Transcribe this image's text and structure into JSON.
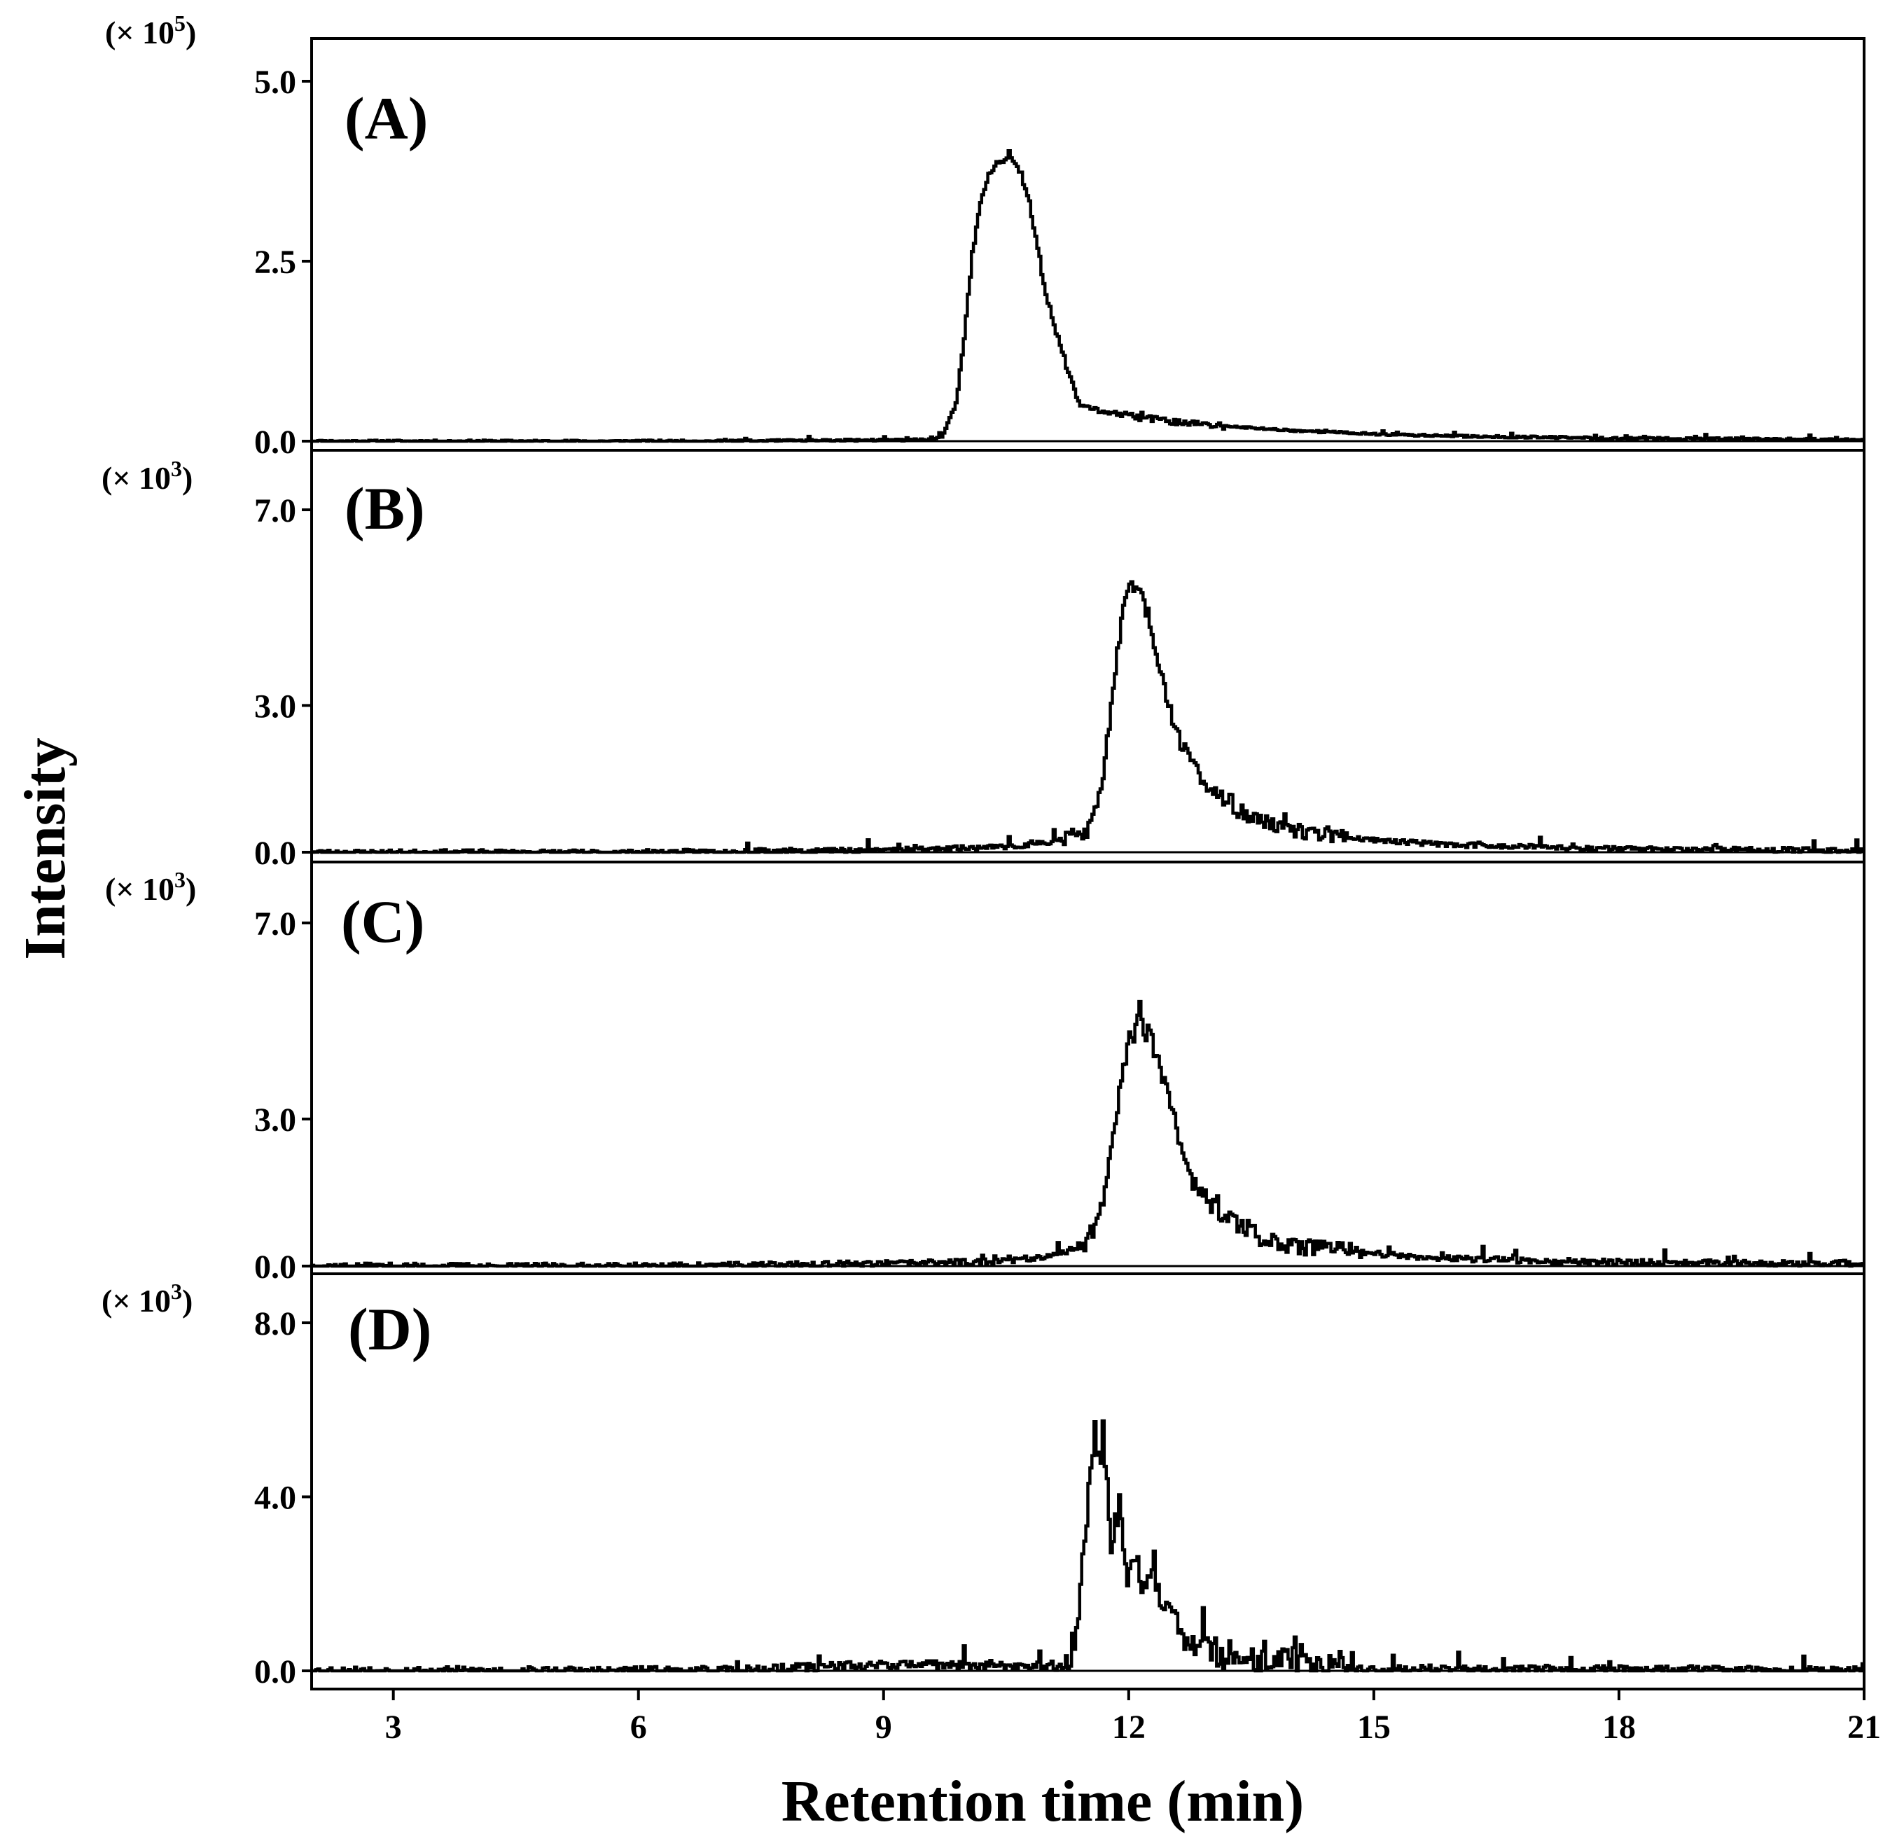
{
  "chart_data": {
    "type": "line",
    "figure_type": "stacked chromatograms",
    "xlabel": "Retention time (min)",
    "ylabel": "Intensity",
    "xlim": [
      2,
      21
    ],
    "x_ticks": [
      3,
      6,
      9,
      12,
      15,
      18,
      21
    ],
    "colors": {
      "line": "#000000",
      "axis": "#000000",
      "background": "#ffffff"
    },
    "panels": [
      {
        "label": "(A)",
        "multiplier": {
          "base": "(× 10",
          "exponent": "5",
          "close": ")"
        },
        "ylim": [
          0,
          5.6
        ],
        "y_ticks": [
          "0.0",
          "2.5",
          "5.0"
        ],
        "y_tick_values": [
          0,
          2.5,
          5.0
        ],
        "peak": {
          "start": 9.7,
          "apex": 10.5,
          "height": 3.9,
          "rise_sigma": 0.22,
          "tail_sigma": 0.35,
          "tail_amp": 0.45,
          "tail_decay": 3.2,
          "noise": 0.015,
          "spike_amp": 0.0,
          "spike_count": 0,
          "seed": 11
        },
        "points": [
          [
            2.0,
            0.0
          ],
          [
            7.0,
            0.0
          ],
          [
            9.6,
            0.02
          ],
          [
            9.75,
            0.1
          ],
          [
            9.9,
            0.55
          ],
          [
            10.0,
            1.4
          ],
          [
            10.1,
            2.6
          ],
          [
            10.2,
            3.3
          ],
          [
            10.3,
            3.7
          ],
          [
            10.4,
            3.85
          ],
          [
            10.5,
            3.9
          ],
          [
            10.55,
            4.05
          ],
          [
            10.6,
            3.85
          ],
          [
            10.7,
            3.7
          ],
          [
            10.8,
            3.3
          ],
          [
            10.9,
            2.7
          ],
          [
            11.0,
            2.0
          ],
          [
            11.1,
            1.6
          ],
          [
            11.2,
            1.25
          ],
          [
            11.3,
            0.85
          ],
          [
            11.4,
            0.55
          ],
          [
            11.5,
            0.45
          ],
          [
            11.8,
            0.4
          ],
          [
            12.0,
            0.35
          ],
          [
            12.5,
            0.28
          ],
          [
            13.0,
            0.22
          ],
          [
            14.0,
            0.15
          ],
          [
            15.0,
            0.1
          ],
          [
            16.0,
            0.07
          ],
          [
            18.0,
            0.04
          ],
          [
            21.0,
            0.02
          ]
        ]
      },
      {
        "label": "(B)",
        "multiplier": {
          "base": "(× 10",
          "exponent": "3",
          "close": ")"
        },
        "ylim": [
          -0.2,
          8.0
        ],
        "y_ticks": [
          "0.0",
          "3.0",
          "7.0"
        ],
        "y_tick_values": [
          0,
          3.0,
          7.0
        ],
        "peak": {
          "start": 11.2,
          "apex": 12.05,
          "height": 5.5,
          "rise_sigma": 0.22,
          "tail_sigma": 0.35,
          "tail_amp": 1.3,
          "tail_decay": 3.0,
          "noise": 0.05,
          "spike_amp": 0.0,
          "spike_count": 0,
          "seed": 23
        },
        "points": [
          [
            2.0,
            0.0
          ],
          [
            6.0,
            0.0
          ],
          [
            9.0,
            0.05
          ],
          [
            10.5,
            0.1
          ],
          [
            11.0,
            0.2
          ],
          [
            11.5,
            0.4
          ],
          [
            11.6,
            0.8
          ],
          [
            11.7,
            1.6
          ],
          [
            11.8,
            3.0
          ],
          [
            11.9,
            4.4
          ],
          [
            12.0,
            5.4
          ],
          [
            12.1,
            5.5
          ],
          [
            12.2,
            5.1
          ],
          [
            12.3,
            4.5
          ],
          [
            12.4,
            3.7
          ],
          [
            12.5,
            3.0
          ],
          [
            12.6,
            2.4
          ],
          [
            12.8,
            1.8
          ],
          [
            13.0,
            1.3
          ],
          [
            13.3,
            0.9
          ],
          [
            13.6,
            0.65
          ],
          [
            14.0,
            0.45
          ],
          [
            15.0,
            0.25
          ],
          [
            16.0,
            0.15
          ],
          [
            18.0,
            0.07
          ],
          [
            21.0,
            0.04
          ]
        ]
      },
      {
        "label": "(C)",
        "multiplier": {
          "base": "(× 10",
          "exponent": "3",
          "close": ")"
        },
        "ylim": [
          -0.2,
          8.0
        ],
        "y_ticks": [
          "0.0",
          "3.0",
          "7.0"
        ],
        "y_tick_values": [
          0,
          3.0,
          7.0
        ],
        "peak": {
          "start": 11.4,
          "apex": 12.15,
          "height": 4.9,
          "rise_sigma": 0.24,
          "tail_sigma": 0.38,
          "tail_amp": 1.2,
          "tail_decay": 3.0,
          "noise": 0.06,
          "spike_amp": 0.25,
          "spike_count": 40,
          "seed": 37
        },
        "points": [
          [
            2.0,
            0.0
          ],
          [
            6.0,
            0.0
          ],
          [
            9.0,
            0.05
          ],
          [
            10.5,
            0.1
          ],
          [
            11.2,
            0.25
          ],
          [
            11.5,
            0.5
          ],
          [
            11.7,
            1.2
          ],
          [
            11.8,
            2.3
          ],
          [
            11.9,
            3.5
          ],
          [
            12.0,
            4.4
          ],
          [
            12.1,
            4.8
          ],
          [
            12.15,
            5.2
          ],
          [
            12.2,
            4.8
          ],
          [
            12.3,
            4.5
          ],
          [
            12.4,
            4.0
          ],
          [
            12.5,
            3.5
          ],
          [
            12.6,
            2.8
          ],
          [
            12.7,
            2.2
          ],
          [
            12.8,
            1.7
          ],
          [
            13.0,
            1.3
          ],
          [
            13.3,
            0.9
          ],
          [
            13.6,
            0.6
          ],
          [
            14.0,
            0.4
          ],
          [
            15.0,
            0.25
          ],
          [
            16.0,
            0.15
          ],
          [
            18.0,
            0.08
          ],
          [
            21.0,
            0.05
          ]
        ]
      },
      {
        "label": "(D)",
        "multiplier": {
          "base": "(× 10",
          "exponent": "3",
          "close": ")"
        },
        "ylim": [
          -0.6,
          9.0
        ],
        "y_ticks": [
          "0.0",
          "4.0",
          "8.0"
        ],
        "y_tick_values": [
          0,
          4.0,
          8.0
        ],
        "peak": {
          "start": 11.35,
          "apex": 11.65,
          "height": 5.2,
          "rise_sigma": 0.1,
          "tail_sigma": 0.22,
          "tail_amp": 2.1,
          "tail_decay": 2.0,
          "noise": 0.1,
          "spike_amp": 0.9,
          "spike_count": 45,
          "seed": 53
        },
        "points": [
          [
            2.0,
            0.0
          ],
          [
            7.0,
            0.0
          ],
          [
            9.0,
            0.15
          ],
          [
            11.3,
            0.1
          ],
          [
            11.4,
            1.3
          ],
          [
            11.5,
            3.5
          ],
          [
            11.6,
            5.7
          ],
          [
            11.65,
            4.5
          ],
          [
            11.7,
            5.5
          ],
          [
            11.8,
            3.0
          ],
          [
            11.9,
            3.8
          ],
          [
            12.0,
            2.1
          ],
          [
            12.1,
            2.5
          ],
          [
            12.2,
            1.9
          ],
          [
            12.3,
            2.6
          ],
          [
            12.4,
            1.7
          ],
          [
            12.5,
            1.3
          ],
          [
            12.6,
            1.1
          ],
          [
            12.7,
            0.5
          ],
          [
            12.9,
            0.6
          ],
          [
            13.2,
            0.25
          ],
          [
            13.6,
            0.2
          ],
          [
            14.0,
            0.25
          ],
          [
            14.5,
            0.05
          ],
          [
            21.0,
            0.0
          ]
        ]
      }
    ]
  }
}
